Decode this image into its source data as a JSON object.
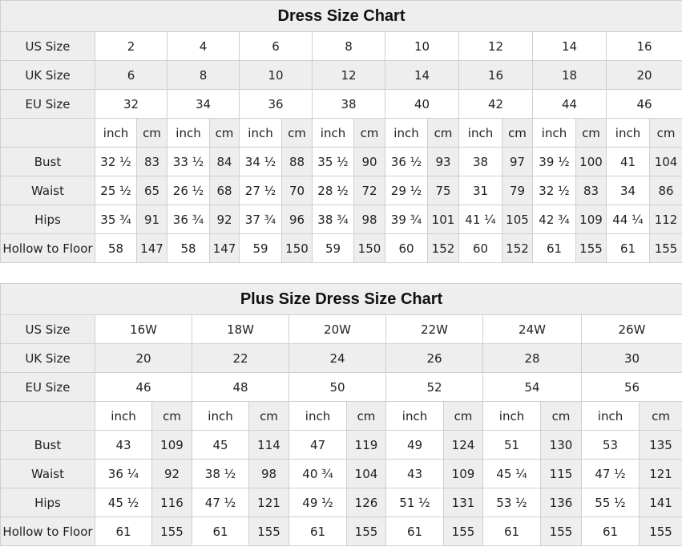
{
  "tables": [
    {
      "title": "Dress Size Chart",
      "labels": {
        "us": "US Size",
        "uk": "UK Size",
        "eu": "EU Size",
        "inch": "inch",
        "cm": "cm"
      },
      "us": [
        "2",
        "4",
        "6",
        "8",
        "10",
        "12",
        "14",
        "16"
      ],
      "uk": [
        "6",
        "8",
        "10",
        "12",
        "14",
        "16",
        "18",
        "20"
      ],
      "eu": [
        "32",
        "34",
        "36",
        "38",
        "40",
        "42",
        "44",
        "46"
      ],
      "measurements": [
        {
          "label": "Bust",
          "values": [
            "32 ½",
            "83",
            "33 ½",
            "84",
            "34 ½",
            "88",
            "35 ½",
            "90",
            "36 ½",
            "93",
            "38",
            "97",
            "39 ½",
            "100",
            "41",
            "104"
          ]
        },
        {
          "label": "Waist",
          "values": [
            "25 ½",
            "65",
            "26 ½",
            "68",
            "27 ½",
            "70",
            "28 ½",
            "72",
            "29 ½",
            "75",
            "31",
            "79",
            "32 ½",
            "83",
            "34",
            "86"
          ]
        },
        {
          "label": "Hips",
          "values": [
            "35 ¾",
            "91",
            "36 ¾",
            "92",
            "37 ¾",
            "96",
            "38 ¾",
            "98",
            "39 ¾",
            "101",
            "41 ¼",
            "105",
            "42 ¾",
            "109",
            "44 ¼",
            "112"
          ]
        },
        {
          "label": "Hollow to Floor",
          "values": [
            "58",
            "147",
            "58",
            "147",
            "59",
            "150",
            "59",
            "150",
            "60",
            "152",
            "60",
            "152",
            "61",
            "155",
            "61",
            "155"
          ]
        }
      ]
    },
    {
      "title": "Plus Size Dress Size Chart",
      "labels": {
        "us": "US Size",
        "uk": "UK Size",
        "eu": "EU Size",
        "inch": "inch",
        "cm": "cm"
      },
      "us": [
        "16W",
        "18W",
        "20W",
        "22W",
        "24W",
        "26W"
      ],
      "uk": [
        "20",
        "22",
        "24",
        "26",
        "28",
        "30"
      ],
      "eu": [
        "46",
        "48",
        "50",
        "52",
        "54",
        "56"
      ],
      "measurements": [
        {
          "label": "Bust",
          "values": [
            "43",
            "109",
            "45",
            "114",
            "47",
            "119",
            "49",
            "124",
            "51",
            "130",
            "53",
            "135"
          ]
        },
        {
          "label": "Waist",
          "values": [
            "36 ¼",
            "92",
            "38 ½",
            "98",
            "40 ¾",
            "104",
            "43",
            "109",
            "45 ¼",
            "115",
            "47 ½",
            "121"
          ]
        },
        {
          "label": "Hips",
          "values": [
            "45 ½",
            "116",
            "47 ½",
            "121",
            "49 ½",
            "126",
            "51 ½",
            "131",
            "53 ½",
            "136",
            "55 ½",
            "141"
          ]
        },
        {
          "label": "Hollow to Floor",
          "values": [
            "61",
            "155",
            "61",
            "155",
            "61",
            "155",
            "61",
            "155",
            "61",
            "155",
            "61",
            "155"
          ]
        }
      ]
    }
  ]
}
